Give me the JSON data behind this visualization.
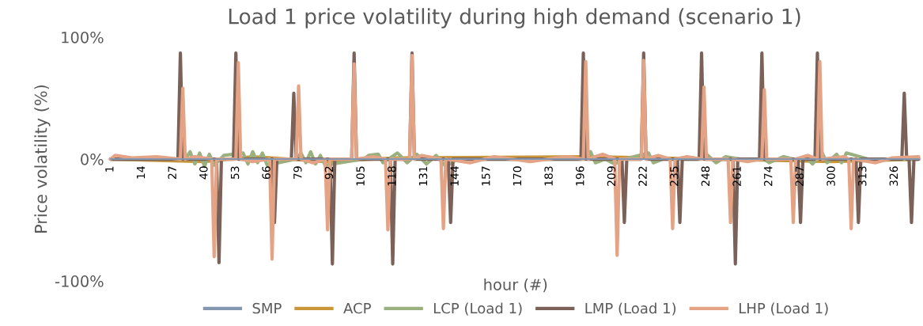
{
  "chart_data": {
    "type": "line",
    "title": "Load 1 price volatility during high demand (scenario 1)",
    "xlabel": "hour (#)",
    "ylabel": "Price volatility (%)",
    "xlim": [
      0,
      337
    ],
    "xticks": [
      1,
      14,
      27,
      40,
      53,
      66,
      79,
      92,
      105,
      118,
      131,
      144,
      157,
      170,
      183,
      196,
      209,
      222,
      235,
      248,
      261,
      274,
      287,
      300,
      313,
      326
    ],
    "ylim": [
      -100,
      100
    ],
    "yticks": [
      {
        "value": -100,
        "label": "-100%"
      },
      {
        "value": 0,
        "label": "0%"
      },
      {
        "value": 100,
        "label": "100%"
      }
    ],
    "grid": false,
    "legend": "bottom",
    "marker": "none",
    "line_style": "solid",
    "series": [
      {
        "name": "SMP",
        "color": "#8497b0",
        "x": [
          1,
          336
        ],
        "values": [
          0,
          0
        ]
      },
      {
        "name": "ACP",
        "color": "#c9963a",
        "x": [
          1,
          40,
          60,
          90,
          120,
          200,
          300,
          336
        ],
        "values": [
          0,
          -2,
          2,
          -2,
          1,
          2,
          -2,
          0
        ]
      },
      {
        "name": "LCP (Load 1)",
        "color": "#9bb07f",
        "x": [
          1,
          32,
          34,
          36,
          38,
          40,
          42,
          44,
          48,
          56,
          58,
          60,
          62,
          64,
          66,
          78,
          80,
          82,
          84,
          86,
          88,
          90,
          106,
          108,
          112,
          114,
          120,
          124,
          128,
          132,
          136,
          140,
          145,
          198,
          200,
          202,
          206,
          210,
          214,
          220,
          224,
          226,
          230,
          246,
          248,
          252,
          256,
          262,
          272,
          274,
          280,
          284,
          290,
          292,
          296,
          298,
          302,
          304,
          306,
          315,
          336
        ],
        "values": [
          0,
          0,
          6,
          -4,
          5,
          -6,
          4,
          -5,
          3,
          5,
          -4,
          6,
          -3,
          5,
          -5,
          0,
          5,
          -3,
          6,
          -4,
          3,
          -5,
          0,
          3,
          4,
          -3,
          5,
          -3,
          4,
          -4,
          3,
          -6,
          0,
          0,
          6,
          -3,
          0,
          -4,
          0,
          3,
          5,
          -3,
          0,
          0,
          4,
          -3,
          2,
          0,
          0,
          -3,
          2,
          0,
          0,
          -4,
          5,
          -3,
          4,
          -3,
          5,
          0,
          0
        ]
      },
      {
        "name": "LMP (Load 1)",
        "color": "#7b6158",
        "x": [
          1,
          29,
          30,
          31,
          45,
          46,
          47,
          52,
          53,
          54,
          68,
          69,
          70,
          76,
          77,
          78,
          92,
          93,
          94,
          101,
          102,
          103,
          117,
          118,
          119,
          125,
          126,
          127,
          141,
          142,
          143,
          196,
          197,
          198,
          213,
          214,
          215,
          221,
          222,
          223,
          236,
          237,
          238,
          245,
          246,
          247,
          259,
          260,
          261,
          270,
          271,
          272,
          286,
          287,
          288,
          293,
          294,
          295,
          310,
          311,
          312,
          329,
          330,
          331,
          332,
          333,
          334,
          336
        ],
        "values": [
          0,
          0,
          87,
          0,
          0,
          -85,
          0,
          0,
          87,
          0,
          0,
          -52,
          0,
          0,
          54,
          0,
          0,
          -86,
          0,
          0,
          87,
          0,
          0,
          -86,
          0,
          0,
          87,
          0,
          0,
          -52,
          0,
          0,
          87,
          0,
          0,
          -52,
          0,
          0,
          87,
          0,
          0,
          -52,
          0,
          0,
          87,
          0,
          0,
          -86,
          0,
          0,
          87,
          0,
          0,
          -52,
          0,
          0,
          87,
          0,
          0,
          -52,
          0,
          0,
          54,
          0,
          0,
          -52,
          0,
          0
        ]
      },
      {
        "name": "LHP (Load 1)",
        "color": "#e3a384",
        "x": [
          1,
          3,
          10,
          20,
          30,
          31,
          32,
          36,
          43,
          44,
          45,
          53,
          54,
          55,
          60,
          67,
          68,
          69,
          78,
          79,
          80,
          85,
          90,
          91,
          92,
          101,
          102,
          103,
          110,
          115,
          116,
          117,
          125,
          126,
          127,
          130,
          138,
          139,
          140,
          150,
          160,
          175,
          190,
          197,
          198,
          199,
          205,
          210,
          211,
          212,
          221,
          222,
          223,
          228,
          233,
          234,
          235,
          240,
          246,
          247,
          248,
          257,
          258,
          259,
          265,
          271,
          272,
          273,
          283,
          284,
          285,
          290,
          294,
          295,
          296,
          305,
          307,
          308,
          309,
          318,
          325,
          336
        ],
        "values": [
          0,
          3,
          1,
          2,
          0,
          58,
          0,
          2,
          0,
          -80,
          0,
          0,
          79,
          0,
          -2,
          0,
          -82,
          0,
          0,
          60,
          0,
          -3,
          0,
          -58,
          0,
          0,
          78,
          0,
          2,
          0,
          -58,
          0,
          0,
          85,
          0,
          3,
          0,
          -57,
          0,
          -3,
          2,
          -2,
          2,
          0,
          80,
          0,
          4,
          0,
          -79,
          0,
          0,
          81,
          0,
          3,
          0,
          -57,
          0,
          2,
          0,
          59,
          0,
          0,
          -52,
          0,
          -2,
          0,
          57,
          0,
          0,
          -52,
          0,
          3,
          0,
          80,
          0,
          2,
          0,
          -57,
          0,
          -3,
          1,
          2
        ]
      }
    ]
  }
}
